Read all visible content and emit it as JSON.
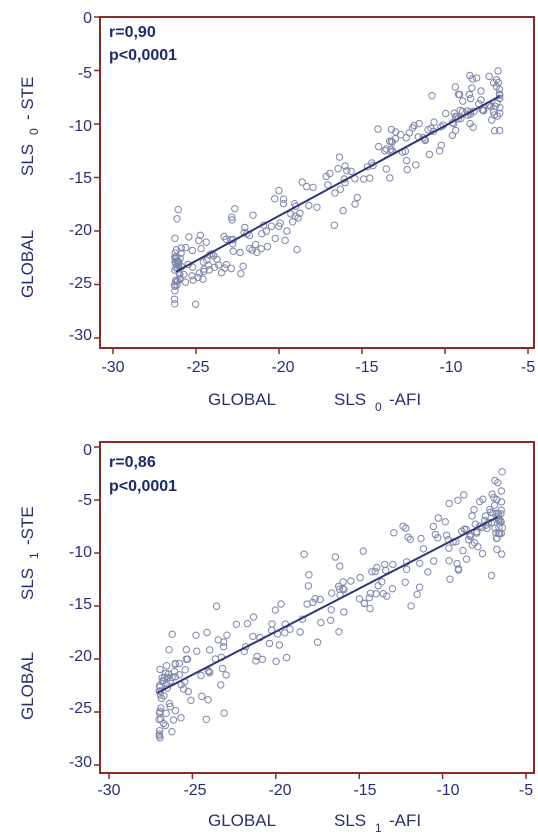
{
  "chart_data": [
    {
      "type": "scatter",
      "stat_r": "r=0,90",
      "stat_p": "p<0,0001",
      "xlabel_main": "GLOBAL",
      "xlabel_sls": "SLS",
      "xlabel_sub": "0",
      "xlabel_suffix": "-AFI",
      "ylabel_main": "GLOBAL",
      "ylabel_sls": "SLS",
      "ylabel_sub": "0",
      "ylabel_suffix": "- STE",
      "xlim": [
        -30,
        -5
      ],
      "ylim": [
        -30,
        0
      ],
      "xticks": [
        "-30",
        "-25",
        "-20",
        "-15",
        "-10",
        "-5"
      ],
      "yticks": [
        "0",
        "-5",
        "-10",
        "-15",
        "-20",
        "-25",
        "-30"
      ],
      "fit_line": {
        "x": [
          -26.2,
          -6.7
        ],
        "y": [
          -23.8,
          -7.4
        ]
      },
      "grid": false,
      "n_points": 240,
      "x_range": [
        -26.5,
        -6.5
      ],
      "seed": 11
    },
    {
      "type": "scatter",
      "stat_r": "r=0,86",
      "stat_p": "p<0,0001",
      "xlabel_main": "GLOBAL",
      "xlabel_sls": "SLS",
      "xlabel_sub": "1",
      "xlabel_suffix": "-AFI",
      "ylabel_main": "GLOBAL",
      "ylabel_sls": "SLS",
      "ylabel_sub": "1",
      "ylabel_suffix": "-STE",
      "xlim": [
        -30,
        -5
      ],
      "ylim": [
        -30,
        0
      ],
      "xticks": [
        "-30",
        "-25",
        "-20",
        "-15",
        "-10",
        "-5"
      ],
      "yticks": [
        "0",
        "-5",
        "-10",
        "-15",
        "-20",
        "-25",
        "-30"
      ],
      "fit_line": {
        "x": [
          -27.1,
          -6.7
        ],
        "y": [
          -23.2,
          -6.6
        ]
      },
      "grid": false,
      "n_points": 240,
      "x_range": [
        -27.2,
        -6.2
      ],
      "seed": 29
    }
  ],
  "colors": {
    "axis": "#8b2b25",
    "text": "#2a2f6e",
    "marker": "#7f86a8",
    "line": "#2f3577"
  }
}
